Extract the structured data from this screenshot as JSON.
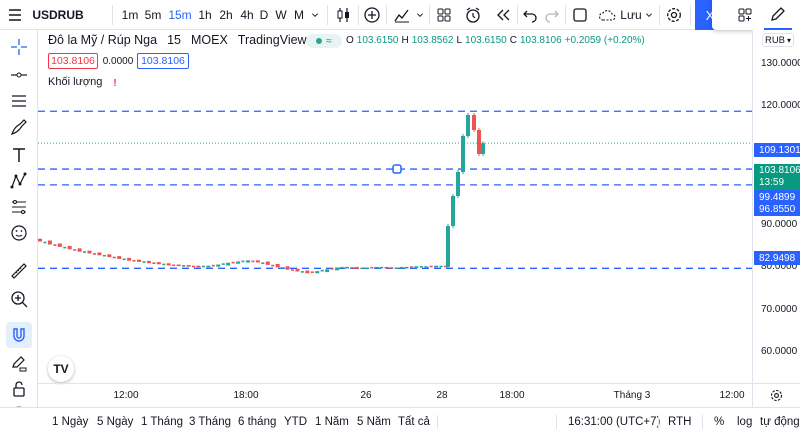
{
  "toolbar": {
    "symbol": "USDRUB",
    "intervals": [
      "1m",
      "5m",
      "15m",
      "1h",
      "2h",
      "4h",
      "D",
      "W",
      "M"
    ],
    "active_interval": "15m",
    "save_label": "Lưu",
    "blue_button_label": "X"
  },
  "legend": {
    "title": "Đô la Mỹ / Rúp Nga",
    "interval": "15",
    "exchange": "MOEX",
    "source": "TradingView",
    "pill_icon": "≈",
    "o_label": "O",
    "o_value": "103.6150",
    "h_label": "H",
    "h_value": "103.8562",
    "l_label": "L",
    "l_value": "103.6150",
    "c_label": "C",
    "c_value": "103.8106",
    "change": "+0.2059 (+0.20%)",
    "sell_price": "103.8106",
    "spread": "0.0000",
    "buy_price": "103.8106",
    "volume_label": "Khối lượng",
    "volume_warning": "!"
  },
  "price_axis": {
    "currency": "RUB",
    "ticks": [
      "130.0000",
      "120.0000",
      "110.0000",
      "90.0000",
      "80.0000",
      "70.0000",
      "60.0000"
    ],
    "current_price": "103.8106",
    "countdown": "13:59",
    "flags": [
      {
        "value": "109.1301",
        "color": "#2962ff"
      },
      {
        "value": "99.4899",
        "color": "#2962ff"
      },
      {
        "value": "96.8550",
        "color": "#2962ff"
      },
      {
        "value": "82.9498",
        "color": "#2962ff"
      }
    ]
  },
  "time_axis": {
    "ticks": [
      "12:00",
      "18:00",
      "26",
      "28",
      "18:00",
      "Tháng 3",
      "12:00"
    ]
  },
  "bottom": {
    "ranges": [
      "1 Ngày",
      "5 Ngày",
      "1 Tháng",
      "3 Tháng",
      "6 tháng",
      "YTD",
      "1 Năm",
      "5 Năm",
      "Tất cả"
    ],
    "clock": "16:31:00 (UTC+7)",
    "session": "RTH",
    "percent": "%",
    "log": "log",
    "auto": "tự động"
  },
  "colors": {
    "up": "#26a69a",
    "down": "#ef5350",
    "line": "#2962ff",
    "accent": "#2962ff"
  },
  "chart_data": {
    "type": "candlestick",
    "symbol": "USDRUB",
    "interval": "15",
    "ylim": [
      55,
      135
    ],
    "horizontal_lines": [
      109.1301,
      99.4899,
      96.855,
      82.9498
    ],
    "current_price": 103.8106,
    "series": [
      {
        "name": "pre-spike",
        "values": [
          87.5,
          87.0,
          86.6,
          86.2,
          85.8,
          85.5,
          85.2,
          84.9,
          84.6,
          84.3,
          84.1,
          83.9,
          83.7,
          83.5,
          83.4,
          83.3,
          83.2,
          83.3,
          83.5,
          83.8,
          84.0,
          84.2,
          84.0,
          83.6,
          83.2,
          82.8,
          82.5,
          82.2,
          82.4,
          82.7,
          83.0,
          83.1,
          82.9,
          83.0,
          83.1,
          83.0,
          83.0,
          83.1,
          83.2,
          83.2,
          83.3,
          83.2
        ]
      },
      {
        "name": "spike",
        "values": [
          90.0,
          95.0,
          99.0,
          105.0,
          108.5,
          106.0,
          102.0,
          103.8
        ]
      }
    ]
  }
}
